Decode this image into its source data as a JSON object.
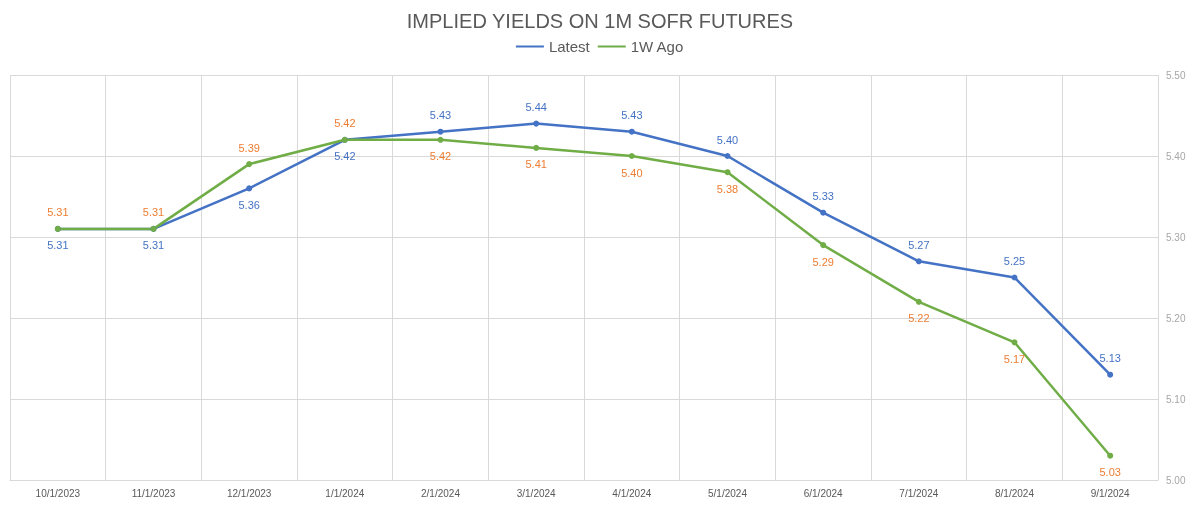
{
  "chart_data": {
    "type": "line",
    "title": "IMPLIED YIELDS ON 1M SOFR FUTURES",
    "categories": [
      "10/1/2023",
      "11/1/2023",
      "12/1/2023",
      "1/1/2024",
      "2/1/2024",
      "3/1/2024",
      "4/1/2024",
      "5/1/2024",
      "6/1/2024",
      "7/1/2024",
      "8/1/2024",
      "9/1/2024"
    ],
    "series": [
      {
        "name": "Latest",
        "color": "#4472c4",
        "values": [
          5.31,
          5.31,
          5.36,
          5.42,
          5.43,
          5.44,
          5.43,
          5.4,
          5.33,
          5.27,
          5.25,
          5.13
        ],
        "value_labels": [
          "5.31",
          "5.31",
          "5.36",
          "5.42",
          "5.43",
          "5.44",
          "5.43",
          "5.40",
          "5.33",
          "5.27",
          "5.25",
          "5.13"
        ]
      },
      {
        "name": "1W Ago",
        "color": "#70ad47",
        "values": [
          5.31,
          5.31,
          5.39,
          5.42,
          5.42,
          5.41,
          5.4,
          5.38,
          5.29,
          5.22,
          5.17,
          5.03
        ],
        "value_labels": [
          "5.31",
          "5.31",
          "5.39",
          "5.42",
          "5.42",
          "5.41",
          "5.40",
          "5.38",
          "5.29",
          "5.22",
          "5.17",
          "5.03"
        ]
      }
    ],
    "ylim": [
      5.0,
      5.5
    ],
    "yticks": [
      {
        "value": 5.0,
        "label": "5.00"
      },
      {
        "value": 5.1,
        "label": "5.10"
      },
      {
        "value": 5.2,
        "label": "5.20"
      },
      {
        "value": 5.3,
        "label": "5.30"
      },
      {
        "value": 5.4,
        "label": "5.40"
      },
      {
        "value": 5.5,
        "label": "5.50"
      }
    ],
    "grid": true,
    "legend": "top",
    "marker": "circle",
    "line_style": "solid"
  }
}
